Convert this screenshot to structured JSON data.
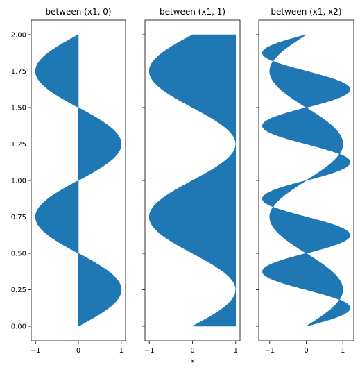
{
  "figure": {
    "fill_color": "#1f77b4",
    "shared_y": true
  },
  "chart_data": [
    {
      "type": "area",
      "title": "between (x1, 0)",
      "xlabel": "",
      "ylabel": "",
      "function": "x1 = sin(2*pi*y)",
      "fill_between": [
        "x1",
        0
      ],
      "y_range": [
        0.0,
        2.0
      ],
      "xlim": [
        -1.1,
        1.1
      ],
      "ylim": [
        -0.1,
        2.1
      ],
      "x_ticks": [
        -1,
        0,
        1
      ],
      "x_tick_labels": [
        "−1",
        "0",
        "1"
      ],
      "y_ticks": [
        0.0,
        0.25,
        0.5,
        0.75,
        1.0,
        1.25,
        1.5,
        1.75,
        2.0
      ],
      "y_tick_labels": [
        "0.00",
        "0.25",
        "0.50",
        "0.75",
        "1.00",
        "1.25",
        "1.50",
        "1.75",
        "2.00"
      ],
      "grid": false
    },
    {
      "type": "area",
      "title": "between (x1, 1)",
      "xlabel": "x",
      "ylabel": "",
      "function": "x1 = sin(2*pi*y)",
      "fill_between": [
        "x1",
        1
      ],
      "y_range": [
        0.0,
        2.0
      ],
      "xlim": [
        -1.1,
        1.1
      ],
      "ylim": [
        -0.1,
        2.1
      ],
      "x_ticks": [
        -1,
        0,
        1
      ],
      "x_tick_labels": [
        "−1",
        "0",
        "1"
      ],
      "grid": false
    },
    {
      "type": "area",
      "title": "between (x1, x2)",
      "xlabel": "",
      "ylabel": "",
      "function": "x1 = sin(2*pi*y); x2 = 1.2*sin(4*pi*y)",
      "fill_between": [
        "x1",
        "x2"
      ],
      "y_range": [
        0.0,
        2.0
      ],
      "xlim": [
        -1.3,
        1.3
      ],
      "ylim": [
        -0.1,
        2.1
      ],
      "x_ticks": [
        -1,
        0,
        1
      ],
      "x_tick_labels": [
        "−1",
        "0",
        "1"
      ],
      "grid": false
    }
  ]
}
